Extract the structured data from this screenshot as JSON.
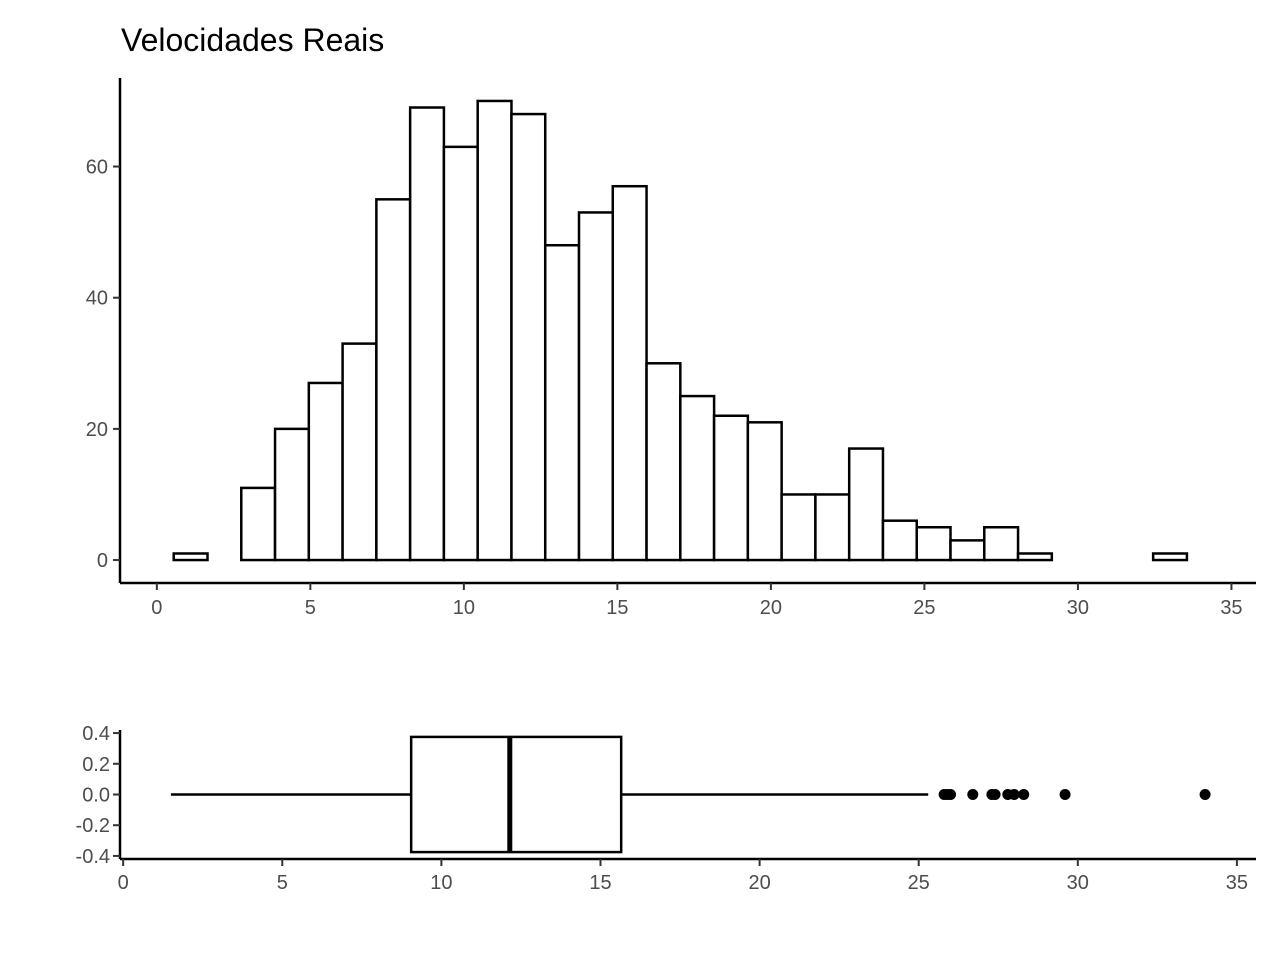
{
  "chart_data": [
    {
      "type": "histogram",
      "title": "Velocidades Reais",
      "xlabel": "",
      "ylabel": "",
      "bin_width": 1.1,
      "bins": [
        {
          "start": 0.55,
          "end": 1.65,
          "count": 1
        },
        {
          "start": 1.65,
          "end": 2.75,
          "count": 0
        },
        {
          "start": 2.75,
          "end": 3.85,
          "count": 11
        },
        {
          "start": 3.85,
          "end": 4.95,
          "count": 20
        },
        {
          "start": 4.95,
          "end": 6.05,
          "count": 27
        },
        {
          "start": 6.05,
          "end": 7.15,
          "count": 33
        },
        {
          "start": 7.15,
          "end": 8.25,
          "count": 55
        },
        {
          "start": 8.25,
          "end": 9.35,
          "count": 69
        },
        {
          "start": 9.35,
          "end": 10.45,
          "count": 63
        },
        {
          "start": 10.45,
          "end": 11.55,
          "count": 70
        },
        {
          "start": 11.55,
          "end": 12.65,
          "count": 68
        },
        {
          "start": 12.65,
          "end": 13.75,
          "count": 48
        },
        {
          "start": 13.75,
          "end": 14.85,
          "count": 53
        },
        {
          "start": 14.85,
          "end": 15.95,
          "count": 57
        },
        {
          "start": 15.95,
          "end": 17.05,
          "count": 30
        },
        {
          "start": 17.05,
          "end": 18.15,
          "count": 25
        },
        {
          "start": 18.15,
          "end": 19.25,
          "count": 22
        },
        {
          "start": 19.25,
          "end": 20.35,
          "count": 21
        },
        {
          "start": 20.35,
          "end": 21.45,
          "count": 10
        },
        {
          "start": 21.45,
          "end": 22.55,
          "count": 10
        },
        {
          "start": 22.55,
          "end": 23.65,
          "count": 17
        },
        {
          "start": 23.65,
          "end": 24.75,
          "count": 6
        },
        {
          "start": 24.75,
          "end": 25.85,
          "count": 5
        },
        {
          "start": 25.85,
          "end": 26.95,
          "count": 3
        },
        {
          "start": 26.95,
          "end": 28.05,
          "count": 5
        },
        {
          "start": 28.05,
          "end": 29.15,
          "count": 1
        },
        {
          "start": 29.15,
          "end": 30.25,
          "count": 0
        },
        {
          "start": 30.25,
          "end": 31.35,
          "count": 0
        },
        {
          "start": 31.35,
          "end": 32.45,
          "count": 0
        },
        {
          "start": 32.45,
          "end": 33.55,
          "count": 1
        }
      ],
      "xlim": [
        -1.2,
        35.8
      ],
      "ylim": [
        -3.5,
        73.5
      ],
      "xticks": [
        0,
        5,
        10,
        15,
        20,
        25,
        30,
        35
      ],
      "yticks": [
        0,
        20,
        40,
        60
      ],
      "grid": false
    },
    {
      "type": "boxplot",
      "orientation": "horizontal",
      "min_whisker": 1.5,
      "q1": 9.05,
      "median": 12.15,
      "q3": 15.65,
      "max_whisker": 25.3,
      "outliers": [
        25.8,
        25.9,
        26.0,
        26.7,
        27.3,
        27.4,
        27.8,
        28.0,
        28.3,
        29.6,
        34.0
      ],
      "box_y_range": [
        -0.375,
        0.375
      ],
      "xlim": [
        -0.1,
        35.6
      ],
      "ylim": [
        -0.42,
        0.42
      ],
      "xticks": [
        0,
        5,
        10,
        15,
        20,
        25,
        30,
        35
      ],
      "yticks": [
        "-0.4",
        "-0.2",
        "0.0",
        "0.2",
        "0.4"
      ],
      "grid": false
    }
  ]
}
